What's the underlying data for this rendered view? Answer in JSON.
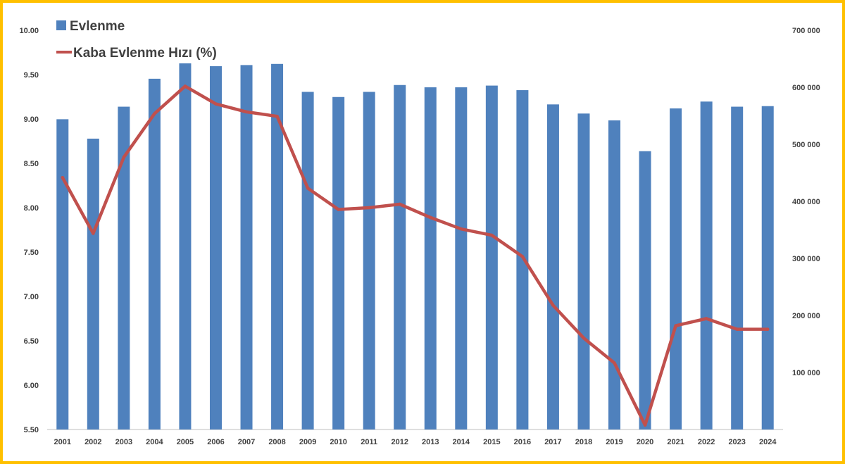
{
  "chart_data": {
    "type": "bar",
    "categories": [
      "2001",
      "2002",
      "2003",
      "2004",
      "2005",
      "2006",
      "2007",
      "2008",
      "2009",
      "2010",
      "2011",
      "2012",
      "2013",
      "2014",
      "2015",
      "2016",
      "2017",
      "2018",
      "2019",
      "2020",
      "2021",
      "2022",
      "2023",
      "2024"
    ],
    "series": [
      {
        "name": "Evlenme",
        "type": "bar",
        "axis": "right",
        "color": "#4F81BD",
        "values": [
          544000,
          510000,
          566000,
          615000,
          642000,
          637000,
          639000,
          641000,
          592000,
          583000,
          592000,
          604000,
          600000,
          600000,
          603000,
          595000,
          570000,
          554000,
          542000,
          488000,
          563000,
          575000,
          566000,
          567000
        ]
      },
      {
        "name": "Kaba Evlenme Hızı (%)",
        "type": "line",
        "axis": "left",
        "color": "#C0504D",
        "values": [
          8.34,
          7.71,
          8.57,
          9.06,
          9.37,
          9.17,
          9.08,
          9.03,
          8.22,
          7.98,
          8.0,
          8.04,
          7.89,
          7.76,
          7.69,
          7.45,
          6.9,
          6.53,
          6.25,
          5.55,
          6.67,
          6.75,
          6.63,
          6.63
        ]
      }
    ],
    "y_left": {
      "min": 5.5,
      "max": 10,
      "step": 0.5,
      "tick_labels": [
        "5.50",
        "6.00",
        "6.50",
        "7.00",
        "7.50",
        "8.00",
        "8.50",
        "9.00",
        "9.50",
        "10.00"
      ]
    },
    "y_right": {
      "min": 0,
      "max": 700000,
      "step": 100000,
      "tick_labels": [
        "",
        "100 000",
        "200 000",
        "300 000",
        "400 000",
        "500 000",
        "600 000",
        "700 000"
      ]
    },
    "legend": {
      "position": "top-left",
      "items": [
        "Evlenme",
        "Kaba Evlenme Hızı (%)"
      ]
    },
    "grid": false,
    "frame_color": "#FFC000"
  }
}
